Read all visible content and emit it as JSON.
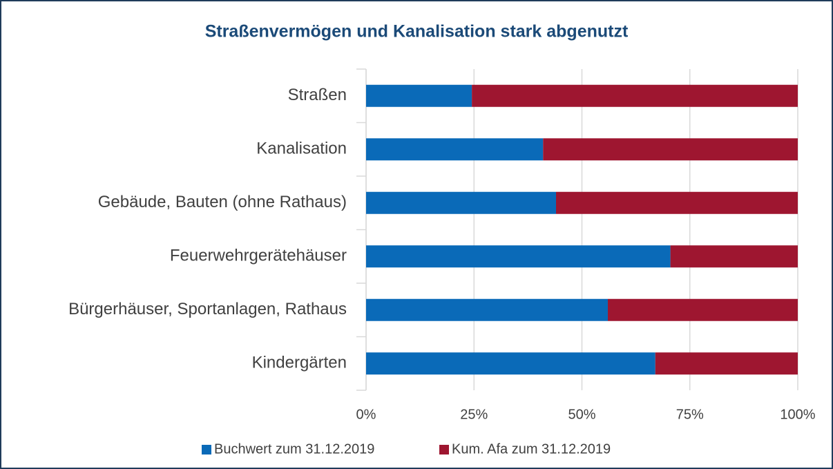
{
  "chart_data": {
    "type": "stacked_barh",
    "title": "Straßenvermögen und Kanalisation stark abgenutzt",
    "categories": [
      "Straßen",
      "Kanalisation",
      "Gebäude, Bauten (ohne Rathaus)",
      "Feuerwehrgerätehäuser",
      "Bürgerhäuser, Sportanlagen, Rathaus",
      "Kindergärten"
    ],
    "series": [
      {
        "name": "Buchwert zum 31.12.2019",
        "color": "#0a6ab8",
        "values": [
          24.5,
          41,
          44,
          70.5,
          56,
          67
        ]
      },
      {
        "name": "Kum. Afa zum 31.12.2019",
        "color": "#9e1630",
        "values": [
          75.5,
          59,
          56,
          29.5,
          44,
          33
        ]
      }
    ],
    "xlim": [
      0,
      100
    ],
    "xticks": [
      {
        "value": 0,
        "label": "0%"
      },
      {
        "value": 25,
        "label": "25%"
      },
      {
        "value": 50,
        "label": "50%"
      },
      {
        "value": 75,
        "label": "75%"
      },
      {
        "value": 100,
        "label": "100%"
      }
    ],
    "grid": true,
    "legend": "bottom"
  }
}
